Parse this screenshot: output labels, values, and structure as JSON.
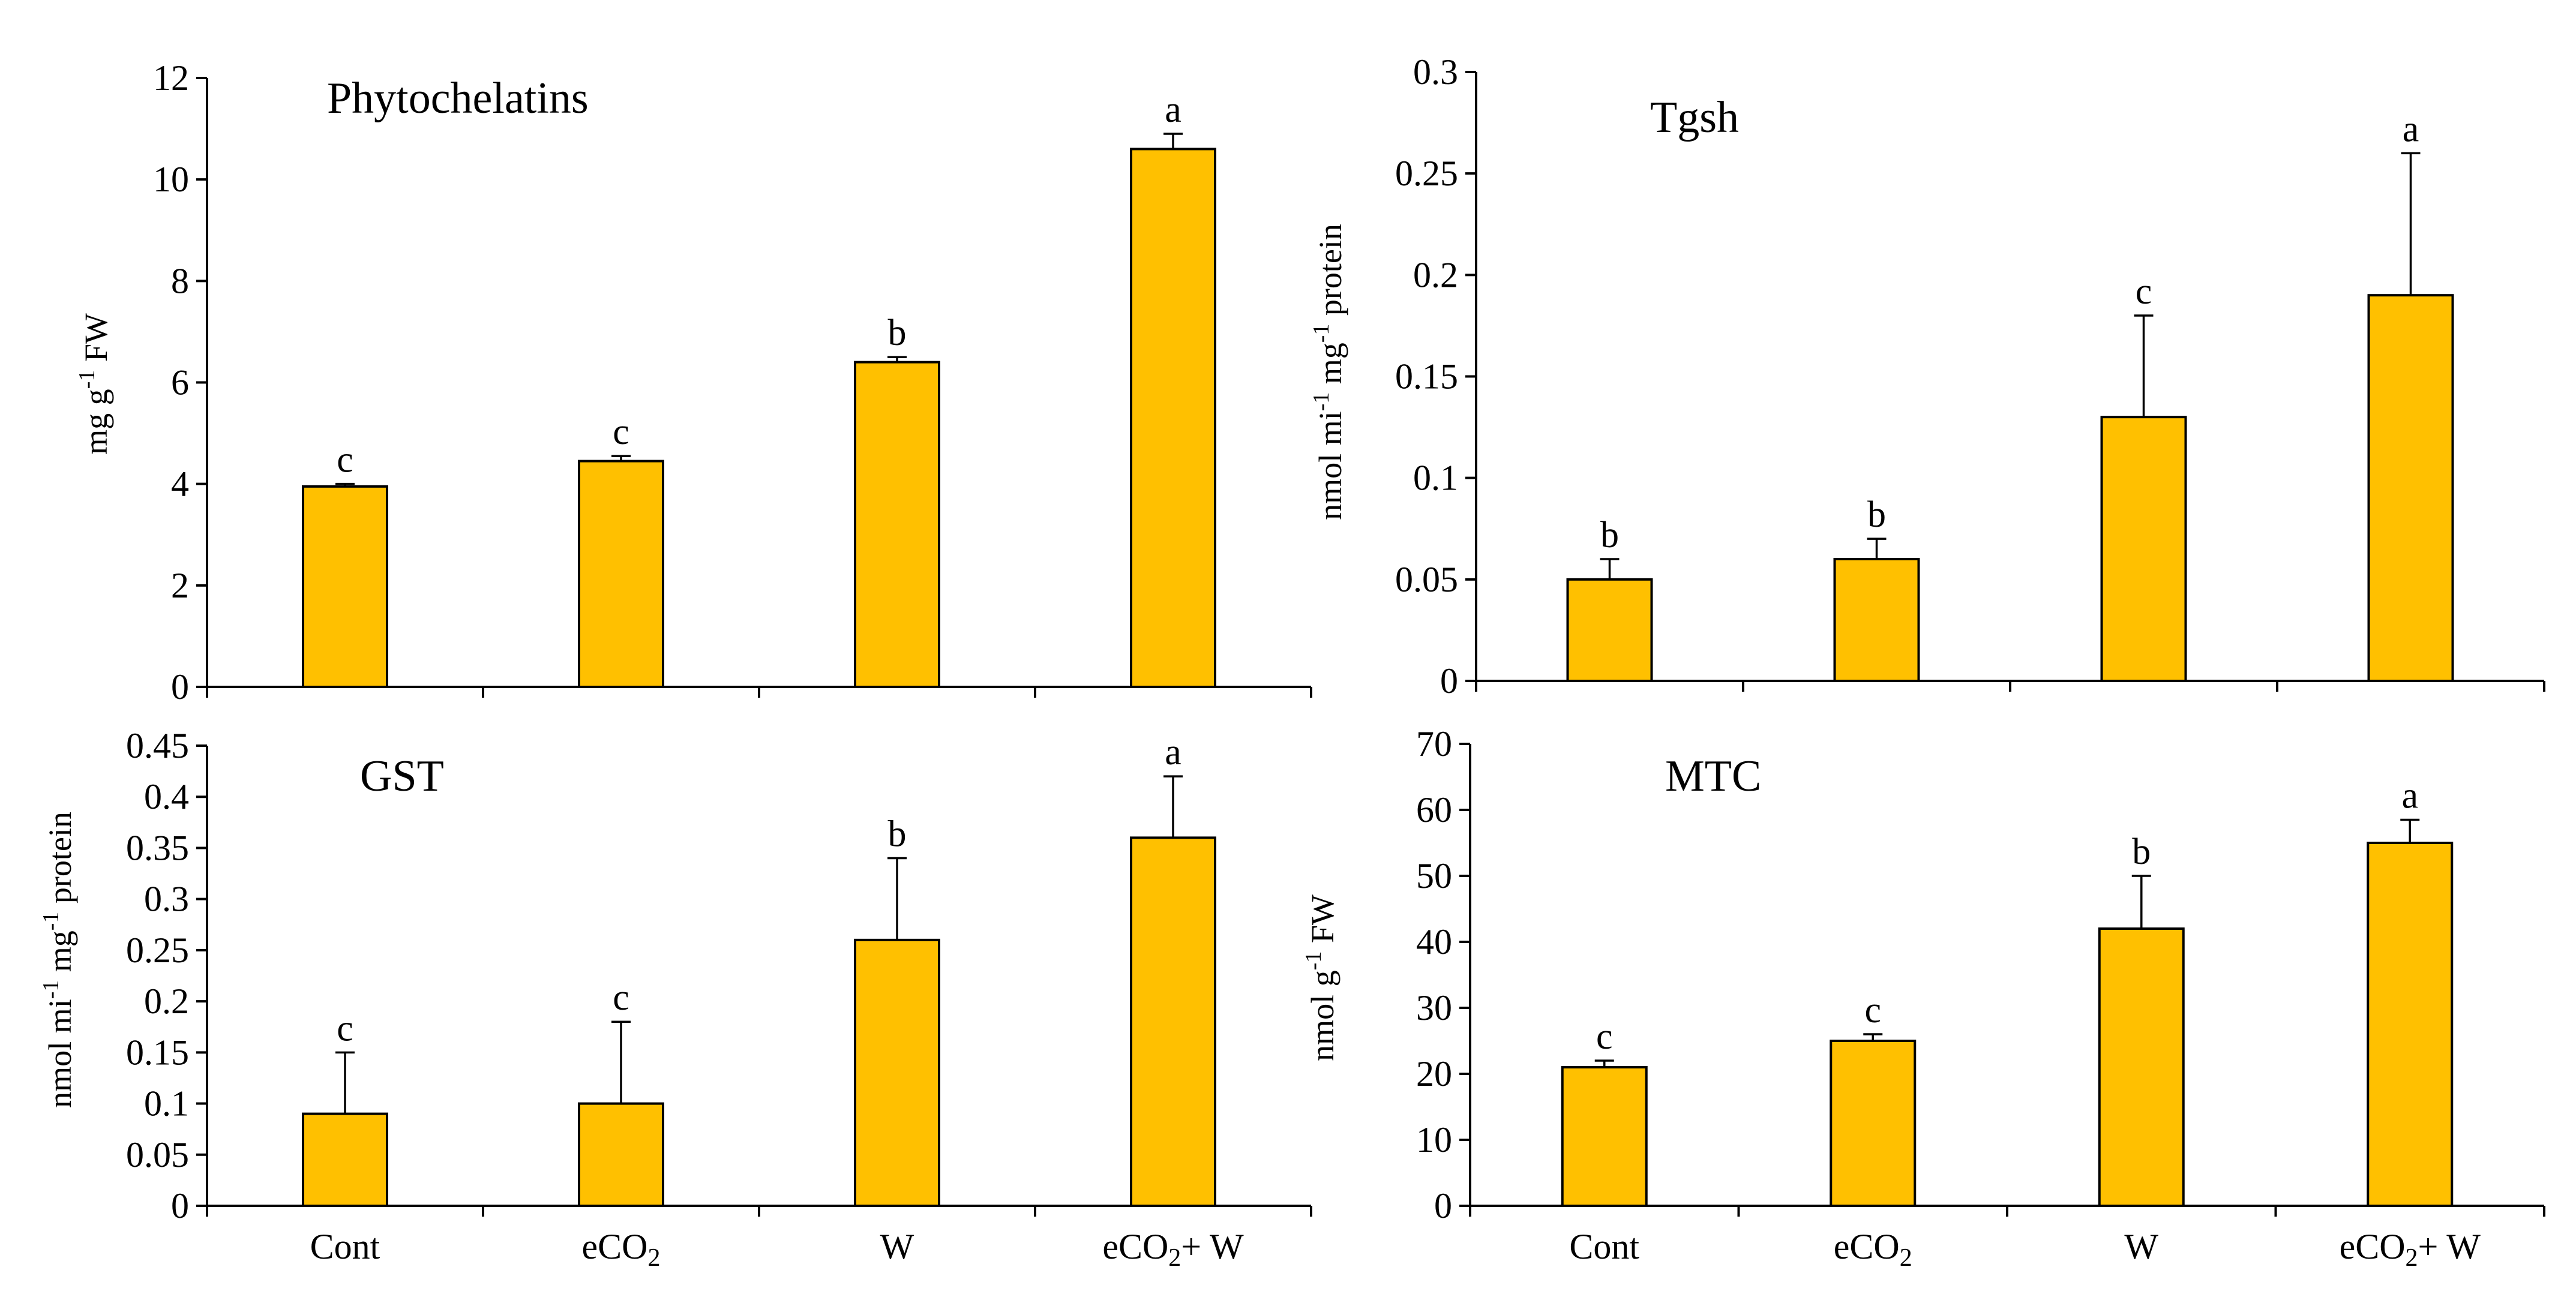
{
  "chart_data": [
    {
      "type": "bar",
      "title": "Phytochelatins",
      "ylabel": "mg g-1 FW",
      "categories": [
        "Cont",
        "eCO2",
        "W",
        "eCO2+ W"
      ],
      "values": [
        3.95,
        4.45,
        6.4,
        10.6
      ],
      "errors": [
        0.05,
        0.1,
        0.1,
        0.3
      ],
      "significance": [
        "c",
        "c",
        "b",
        "a"
      ],
      "ylim": [
        0,
        12
      ],
      "yticks": [
        "0",
        "2",
        "4",
        "6",
        "8",
        "10",
        "12"
      ],
      "xlabel": ""
    },
    {
      "type": "bar",
      "title": "Tgsh",
      "ylabel": "nmol mi-1 mg-1 protein",
      "categories": [
        "Cont",
        "eCO2",
        "W",
        "eCO2+ W"
      ],
      "values": [
        0.05,
        0.06,
        0.13,
        0.19
      ],
      "errors": [
        0.01,
        0.01,
        0.05,
        0.07
      ],
      "significance": [
        "b",
        "b",
        "c",
        "a"
      ],
      "ylim": [
        0,
        0.3
      ],
      "yticks": [
        "0",
        "0.05",
        "0.1",
        "0.15",
        "0.2",
        "0.25",
        "0.3"
      ],
      "xlabel": ""
    },
    {
      "type": "bar",
      "title": "GST",
      "ylabel": "nmol mi-1 mg-1 protein",
      "categories": [
        "Cont",
        "eCO2",
        "W",
        "eCO2+ W"
      ],
      "values": [
        0.09,
        0.1,
        0.26,
        0.36
      ],
      "errors": [
        0.06,
        0.08,
        0.08,
        0.06
      ],
      "significance": [
        "c",
        "c",
        "b",
        "a"
      ],
      "ylim": [
        0,
        0.45
      ],
      "yticks": [
        "0",
        "0.05",
        "0.1",
        "0.15",
        "0.2",
        "0.25",
        "0.3",
        "0.35",
        "0.4",
        "0.45"
      ],
      "xlabel": ""
    },
    {
      "type": "bar",
      "title": "MTC",
      "ylabel": "nmol g-1 FW",
      "categories": [
        "Cont",
        "eCO2",
        "W",
        "eCO2+ W"
      ],
      "values": [
        21,
        25,
        42,
        55
      ],
      "errors": [
        1,
        1,
        8,
        3.5
      ],
      "significance": [
        "c",
        "c",
        "b",
        "a"
      ],
      "ylim": [
        0,
        70
      ],
      "yticks": [
        "0",
        "10",
        "20",
        "30",
        "40",
        "50",
        "60",
        "70"
      ],
      "xlabel": ""
    }
  ],
  "colors": {
    "bar_fill": "#FFC000",
    "stroke": "#000000"
  }
}
